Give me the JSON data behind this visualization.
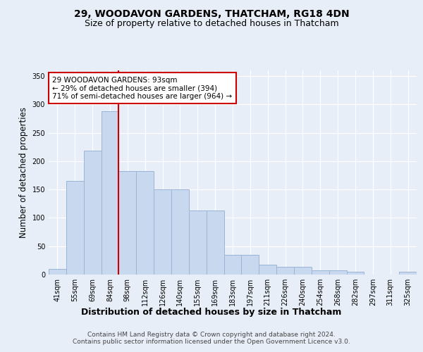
{
  "title1": "29, WOODAVON GARDENS, THATCHAM, RG18 4DN",
  "title2": "Size of property relative to detached houses in Thatcham",
  "xlabel": "Distribution of detached houses by size in Thatcham",
  "ylabel": "Number of detached properties",
  "categories": [
    "41sqm",
    "55sqm",
    "69sqm",
    "84sqm",
    "98sqm",
    "112sqm",
    "126sqm",
    "140sqm",
    "155sqm",
    "169sqm",
    "183sqm",
    "197sqm",
    "211sqm",
    "226sqm",
    "240sqm",
    "254sqm",
    "268sqm",
    "282sqm",
    "297sqm",
    "311sqm",
    "325sqm"
  ],
  "bar_heights": [
    10,
    165,
    218,
    288,
    183,
    183,
    150,
    150,
    113,
    113,
    35,
    35,
    18,
    14,
    14,
    8,
    8,
    5,
    0,
    0,
    5
  ],
  "bar_color": "#c8d8ee",
  "bar_edgecolor": "#9ab5d5",
  "bar_linewidth": 0.7,
  "vline_color": "#cc0000",
  "vline_x": 4,
  "annotation_text": "29 WOODAVON GARDENS: 93sqm\n← 29% of detached houses are smaller (394)\n71% of semi-detached houses are larger (964) →",
  "annotation_box_edgecolor": "#cc0000",
  "annotation_box_facecolor": "white",
  "ylim": [
    0,
    360
  ],
  "yticks": [
    0,
    50,
    100,
    150,
    200,
    250,
    300,
    350
  ],
  "bg_color": "#e8eef8",
  "plot_bg_color": "#e8eef8",
  "grid_color": "white",
  "footer_text": "Contains HM Land Registry data © Crown copyright and database right 2024.\nContains public sector information licensed under the Open Government Licence v3.0.",
  "title1_fontsize": 10,
  "title2_fontsize": 9,
  "xlabel_fontsize": 9,
  "ylabel_fontsize": 8.5,
  "tick_fontsize": 7,
  "annotation_fontsize": 7.5,
  "footer_fontsize": 6.5
}
